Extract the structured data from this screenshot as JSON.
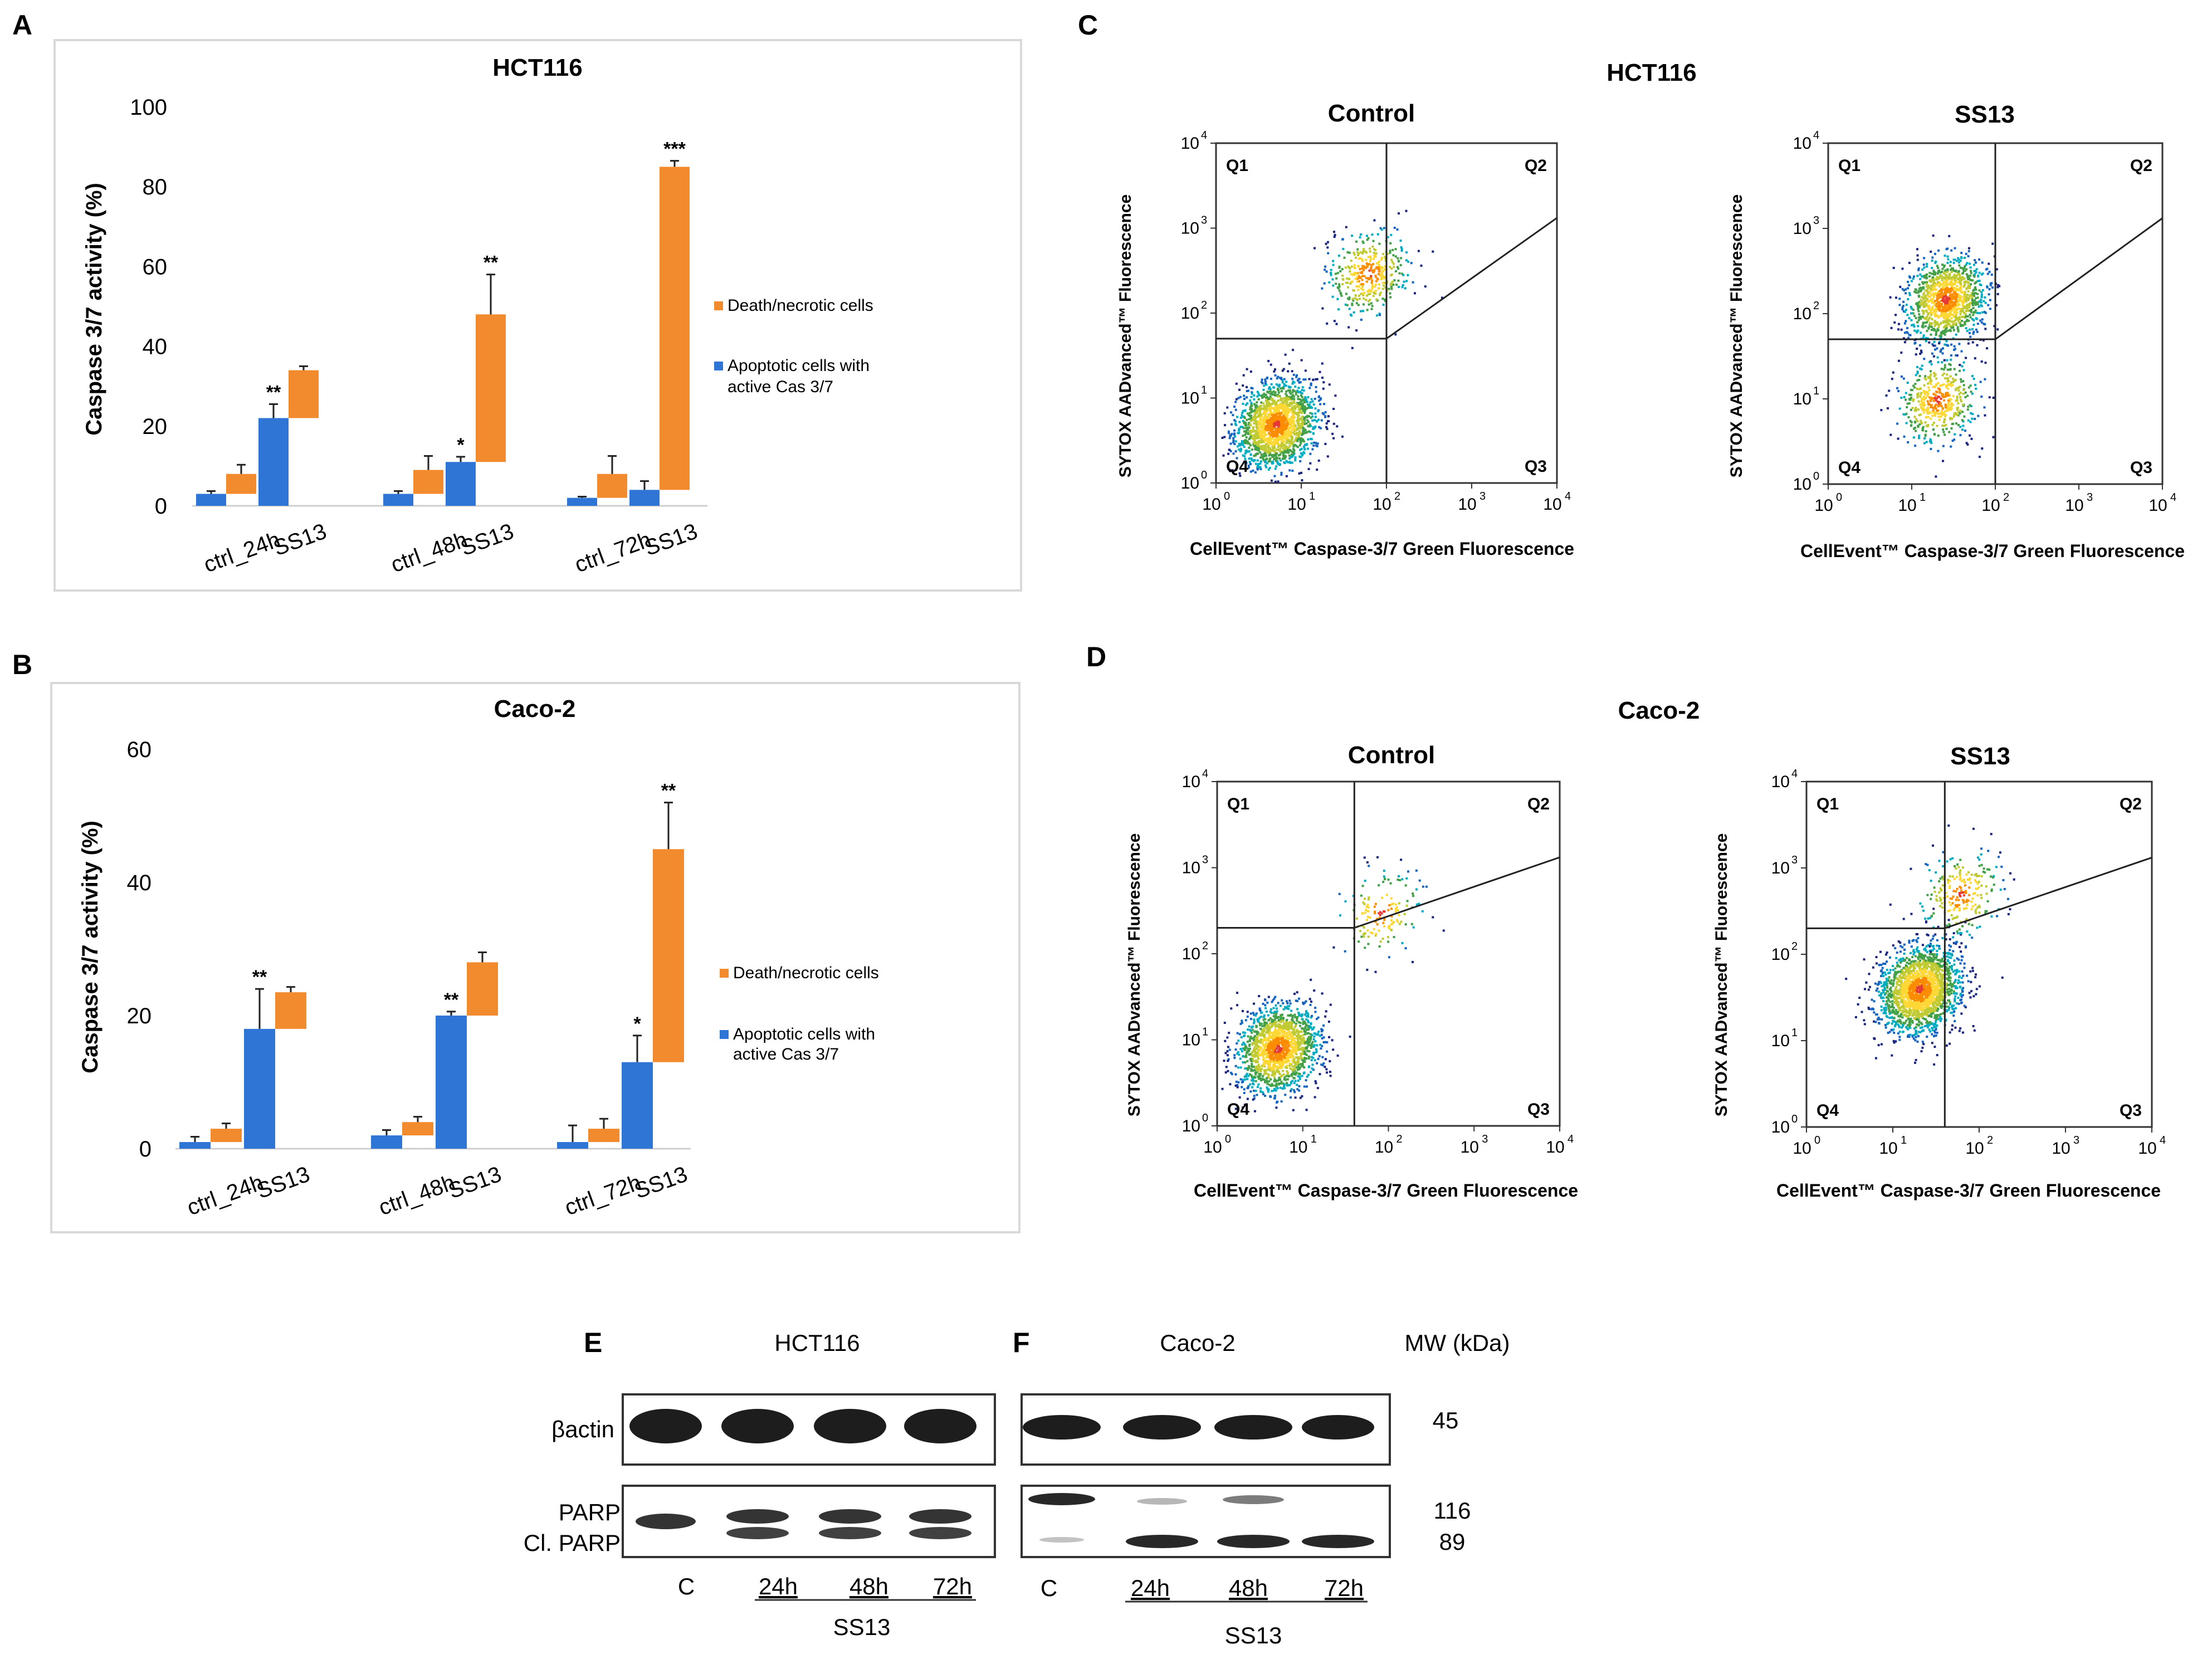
{
  "panels": {
    "A": {
      "letter": "A",
      "chart_data": {
        "type": "bar",
        "title": "HCT116",
        "ylabel": "Caspase 3/7 activity (%)",
        "xlabel": "",
        "ylim": [
          0,
          100
        ],
        "yticks": [
          0,
          20,
          40,
          60,
          80,
          100
        ],
        "categories": [
          "ctrl_24h",
          "SS13",
          "ctrl_48h",
          "SS13",
          "ctrl_72h",
          "SS13"
        ],
        "series": [
          {
            "name": "Apoptotic cells with active Cas 3/7",
            "color": "#2e75d6",
            "values": [
              3,
              22,
              3,
              11,
              2,
              4
            ],
            "errors": [
              0.7,
              3.5,
              0.7,
              1.3,
              0.3,
              2.2
            ],
            "stars": [
              "",
              "**",
              "",
              "*",
              "",
              ""
            ]
          },
          {
            "name": "Death/necrotic cells",
            "color": "#f28a2e",
            "base": [
              3,
              22,
              3,
              11,
              2,
              4
            ],
            "values": [
              5,
              12,
              6,
              37,
              6,
              81
            ],
            "errors": [
              2.3,
              1.0,
              3.5,
              10,
              4.5,
              1.5
            ],
            "stars": [
              "",
              "",
              "",
              "**",
              "",
              "***"
            ]
          }
        ],
        "legend": [
          "Death/necrotic cells",
          "Apoptotic cells with",
          "active Cas 3/7"
        ],
        "legend_position": "right"
      }
    },
    "B": {
      "letter": "B",
      "chart_data": {
        "type": "bar",
        "title": "Caco-2",
        "ylabel": "Caspase 3/7 activity (%)",
        "xlabel": "",
        "ylim": [
          0,
          60
        ],
        "yticks": [
          0,
          20,
          40,
          60
        ],
        "categories": [
          "ctrl_24h",
          "SS13",
          "ctrl_48h",
          "SS13",
          "ctrl_72h",
          "SS13"
        ],
        "series": [
          {
            "name": "Apoptotic cells with active Cas 3/7",
            "color": "#2e75d6",
            "values": [
              1,
              18,
              2,
              20,
              1,
              13
            ],
            "errors": [
              0.8,
              6,
              0.8,
              0.6,
              2.5,
              4
            ],
            "stars": [
              "",
              "**",
              "",
              "**",
              "",
              "*"
            ]
          },
          {
            "name": "Death/necrotic cells",
            "color": "#f28a2e",
            "base": [
              1,
              18,
              2,
              20,
              1,
              13
            ],
            "values": [
              2,
              5.5,
              2,
              8,
              2,
              32
            ],
            "errors": [
              0.8,
              0.8,
              0.8,
              1.5,
              1.5,
              7
            ],
            "stars": [
              "",
              "",
              "",
              "",
              "",
              "**"
            ]
          }
        ],
        "legend": [
          "Death/necrotic cells",
          "Apoptotic cells with",
          "active Cas 3/7"
        ],
        "legend_position": "right"
      }
    },
    "C": {
      "letter": "C",
      "cell_line": "HCT116",
      "plots": [
        {
          "title": "Control",
          "gate_x": 100,
          "gate_y": 50,
          "populations": [
            {
              "cx": 5,
              "cy": 5,
              "n": 1800
            },
            {
              "cx": 60,
              "cy": 300,
              "n": 400
            }
          ]
        },
        {
          "title": "SS13",
          "gate_x": 100,
          "gate_y": 50,
          "populations": [
            {
              "cx": 25,
              "cy": 150,
              "n": 1200
            },
            {
              "cx": 20,
              "cy": 10,
              "n": 500
            }
          ]
        }
      ],
      "ylabel": "SYTOX AADvanced™ Fluorescence",
      "xlabel": "CellEvent™ Caspase-3/7 Green Fluorescence",
      "quadrants": [
        "Q1",
        "Q2",
        "Q3",
        "Q4"
      ]
    },
    "D": {
      "letter": "D",
      "cell_line": "Caco-2",
      "plots": [
        {
          "title": "Control",
          "gate_x": 40,
          "gate_y": 200,
          "populations": [
            {
              "cx": 5,
              "cy": 8,
              "n": 1600
            },
            {
              "cx": 80,
              "cy": 300,
              "n": 150
            }
          ]
        },
        {
          "title": "SS13",
          "gate_x": 40,
          "gate_y": 200,
          "populations": [
            {
              "cx": 20,
              "cy": 40,
              "n": 2000
            },
            {
              "cx": 60,
              "cy": 500,
              "n": 250
            }
          ]
        }
      ],
      "ylabel": "SYTOX AADvanced™ Fluorescence",
      "xlabel": "CellEvent™ Caspase-3/7 Green Fluorescence",
      "quadrants": [
        "Q1",
        "Q2",
        "Q3",
        "Q4"
      ]
    },
    "E": {
      "letter": "E",
      "cell_line": "HCT116",
      "lanes": [
        "C",
        "24h",
        "48h",
        "72h"
      ],
      "group": "SS13",
      "row_labels": [
        "βactin",
        "PARP",
        "Cl. PARP"
      ]
    },
    "F": {
      "letter": "F",
      "cell_line": "Caco-2",
      "lanes": [
        "C",
        "24h",
        "48h",
        "72h"
      ],
      "group": "SS13",
      "mw_label": "MW (kDa)",
      "mw_values": [
        "45",
        "116",
        "89"
      ]
    }
  }
}
